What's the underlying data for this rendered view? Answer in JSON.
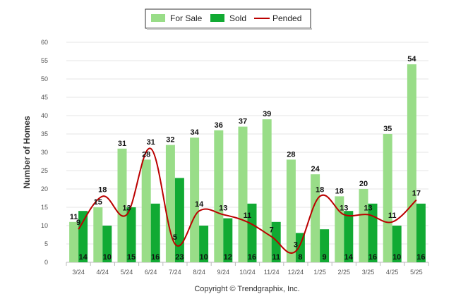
{
  "chart_data": {
    "type": "bar",
    "categories": [
      "3/24",
      "4/24",
      "5/24",
      "6/24",
      "7/24",
      "8/24",
      "9/24",
      "10/24",
      "11/24",
      "12/24",
      "1/25",
      "2/25",
      "3/25",
      "4/25",
      "5/25"
    ],
    "series": [
      {
        "name": "For Sale",
        "type": "bar",
        "color": "#99dd88",
        "values": [
          11,
          15,
          31,
          28,
          32,
          34,
          36,
          37,
          39,
          28,
          24,
          18,
          20,
          35,
          54
        ]
      },
      {
        "name": "Sold",
        "type": "bar",
        "color": "#11aa33",
        "values": [
          14,
          10,
          15,
          16,
          23,
          10,
          12,
          16,
          11,
          8,
          9,
          14,
          16,
          10,
          16
        ]
      },
      {
        "name": "Pended",
        "type": "line",
        "color": "#bb0000",
        "values": [
          9,
          18,
          13,
          31,
          5,
          14,
          13,
          11,
          7,
          3,
          18,
          13,
          13,
          11,
          17
        ]
      }
    ],
    "ylabel": "Number of Homes",
    "xlabel": "",
    "ylim": [
      0,
      60
    ],
    "yticks": [
      0,
      5,
      10,
      15,
      20,
      25,
      30,
      35,
      40,
      45,
      50,
      55,
      60
    ],
    "grid": true,
    "legend_position": "top-center"
  },
  "footer": {
    "copyright": "Copyright © Trendgraphix, Inc."
  }
}
